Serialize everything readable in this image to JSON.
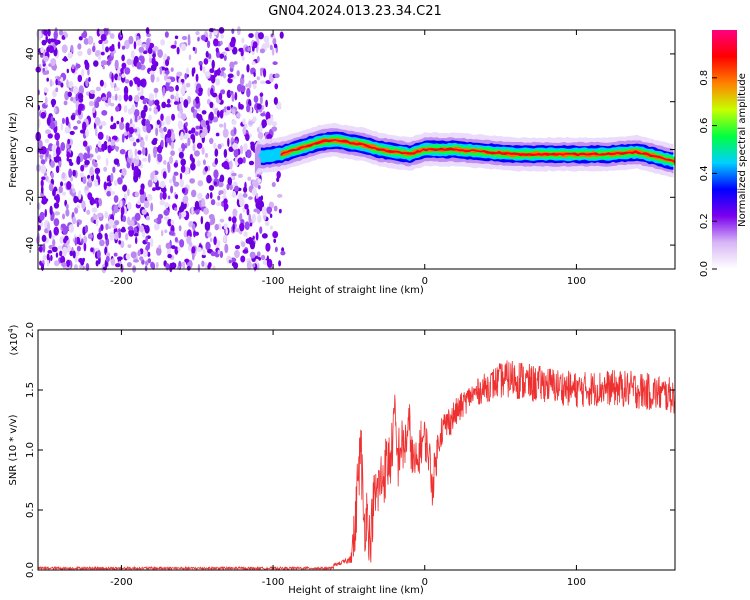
{
  "title": "GN04.2024.013.23.34.C21",
  "chart_data": [
    {
      "type": "heatmap",
      "xlabel": "Height of straight line (km)",
      "ylabel": "Frequency (Hz)",
      "xlim": [
        -255,
        165
      ],
      "ylim": [
        -50,
        50
      ],
      "xticks": [
        -200,
        -100,
        0,
        100
      ],
      "yticks": [
        -40,
        -20,
        0,
        20,
        40
      ],
      "colorbar": {
        "label": "Normalized spectral amplitude",
        "range": [
          0,
          1
        ],
        "ticks": [
          "0.0",
          "0.2",
          "0.4",
          "0.6",
          "0.8"
        ],
        "colormap": [
          "#ffffff",
          "#d7b6f5",
          "#7a00ee",
          "#0000ff",
          "#00d0ff",
          "#00ff40",
          "#c8ff00",
          "#ff8000",
          "#ff0000",
          "#ff0080"
        ]
      },
      "ridge": {
        "x": [
          -110,
          -95,
          -80,
          -70,
          -60,
          -50,
          -40,
          -30,
          -20,
          -10,
          0,
          20,
          40,
          60,
          80,
          100,
          120,
          140,
          165
        ],
        "y": [
          -3,
          -2,
          1,
          3,
          4,
          3,
          2,
          0,
          -1,
          -2,
          0,
          0,
          -1,
          -2,
          -2,
          -2,
          -2,
          -1,
          -5
        ]
      },
      "grid": false
    },
    {
      "type": "line",
      "xlabel": "Height of straight line (km)",
      "ylabel": "SNR (10 * v/v)",
      "y_scale_label": "(x10",
      "y_scale_exp": "4",
      "y_scale_suffix": ")",
      "xlim": [
        -255,
        165
      ],
      "ylim": [
        0,
        2.0
      ],
      "xticks": [
        -200,
        -100,
        0,
        100
      ],
      "yticks": [
        "0.0",
        "0.5",
        "1.0",
        "1.5",
        "2.0"
      ],
      "color": "#ee3030",
      "series": [
        {
          "x": [
            -255,
            -100,
            -60,
            -50,
            -46,
            -44,
            -42,
            -40,
            -38,
            -36,
            -34,
            -30,
            -26,
            -22,
            -20,
            -18,
            -16,
            -14,
            -10,
            -8,
            -5,
            -3,
            0,
            3,
            5,
            10,
            20,
            30,
            40,
            50,
            60,
            70,
            80,
            100,
            120,
            140,
            165
          ],
          "y": [
            0.01,
            0.01,
            0.04,
            0.08,
            0.3,
            0.8,
            1.0,
            0.35,
            0.5,
            0.2,
            0.55,
            0.7,
            0.85,
            0.95,
            1.3,
            0.9,
            1.05,
            1.0,
            1.2,
            0.9,
            0.85,
            1.05,
            1.1,
            0.95,
            0.7,
            1.15,
            1.3,
            1.45,
            1.52,
            1.58,
            1.6,
            1.55,
            1.55,
            1.5,
            1.52,
            1.5,
            1.45
          ],
          "noise": [
            0.0,
            0.0,
            0.02,
            0.05,
            0.5,
            0.5,
            0.6,
            0.5,
            0.5,
            0.45,
            0.5,
            0.55,
            0.55,
            0.5,
            0.45,
            0.55,
            0.5,
            0.45,
            0.4,
            0.45,
            0.4,
            0.4,
            0.35,
            0.35,
            0.35,
            0.3,
            0.25,
            0.2,
            0.25,
            0.3,
            0.35,
            0.32,
            0.3,
            0.3,
            0.3,
            0.32,
            0.3
          ]
        }
      ],
      "grid": false
    }
  ]
}
